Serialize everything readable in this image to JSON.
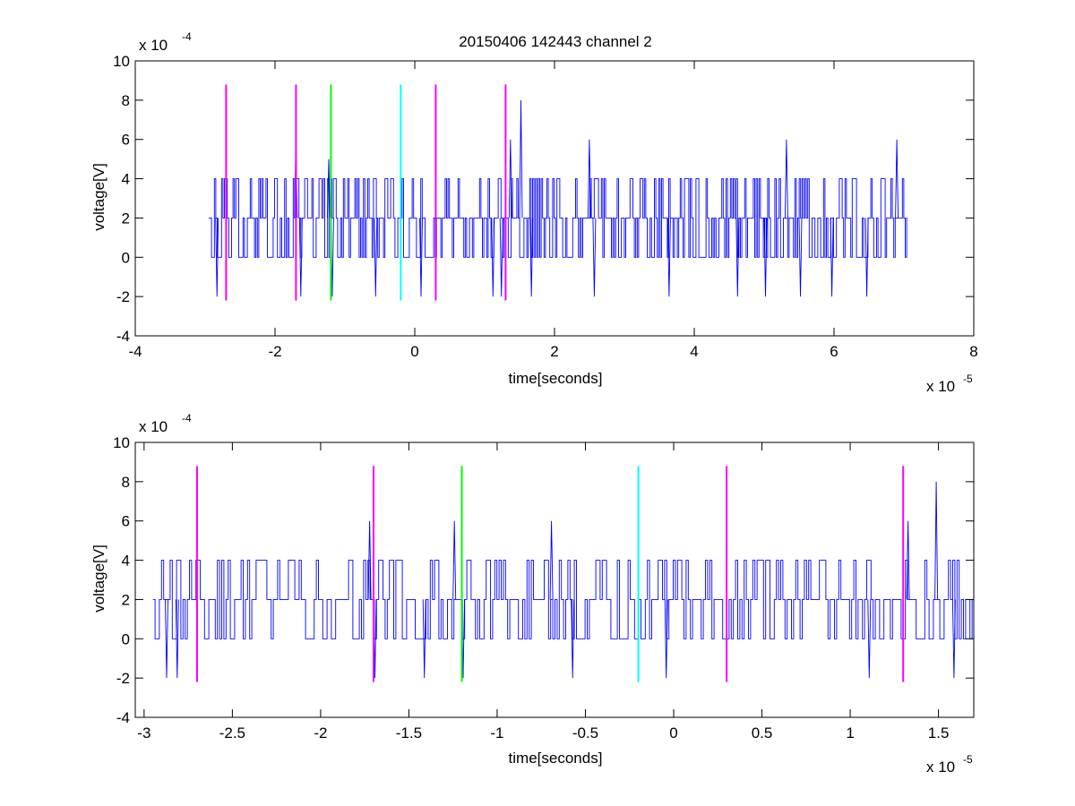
{
  "chart_data": [
    {
      "type": "line",
      "title": "20150406 142443 channel 2",
      "xlabel": "time[seconds]",
      "ylabel": "voltage[V]",
      "x_exponent_label": "x 10",
      "x_exponent": "-5",
      "y_exponent_label": "x 10",
      "y_exponent": "-4",
      "xlim": [
        -4,
        8
      ],
      "ylim": [
        -4,
        10
      ],
      "xticks": [
        -4,
        -2,
        0,
        2,
        4,
        6,
        8
      ],
      "xtick_labels": [
        "-4",
        "-2",
        "0",
        "2",
        "4",
        "6",
        "8"
      ],
      "yticks": [
        -4,
        -2,
        0,
        2,
        4,
        6,
        8,
        10
      ],
      "ytick_labels": [
        "-4",
        "-2",
        "0",
        "2",
        "4",
        "6",
        "8",
        "10"
      ],
      "grid": false,
      "series": [
        {
          "color": "#0000ff",
          "x_start": -2.95,
          "x_end": 7.05,
          "baseline": 2,
          "levels": [
            -2,
            0,
            2,
            4,
            6,
            8
          ],
          "spikes": [
            {
              "x": -2.85,
              "y": -2
            },
            {
              "x": -1.72,
              "y": 6
            },
            {
              "x": -1.65,
              "y": -2
            },
            {
              "x": -1.25,
              "y": 5
            },
            {
              "x": -1.2,
              "y": -2
            },
            {
              "x": -0.58,
              "y": -2
            },
            {
              "x": 0.07,
              "y": -2
            },
            {
              "x": 1.1,
              "y": -2
            },
            {
              "x": 1.22,
              "y": -2
            },
            {
              "x": 1.35,
              "y": 6
            },
            {
              "x": 1.5,
              "y": 8
            },
            {
              "x": 1.65,
              "y": -2
            },
            {
              "x": 2.48,
              "y": 6
            },
            {
              "x": 2.55,
              "y": -2
            },
            {
              "x": 3.62,
              "y": -2
            },
            {
              "x": 4.6,
              "y": -2
            },
            {
              "x": 5.0,
              "y": -2
            },
            {
              "x": 5.3,
              "y": 6
            },
            {
              "x": 5.5,
              "y": -2
            },
            {
              "x": 5.95,
              "y": -2
            },
            {
              "x": 6.45,
              "y": -2
            },
            {
              "x": 6.88,
              "y": 6
            }
          ]
        }
      ],
      "markers": [
        {
          "x": -2.7,
          "color": "#ff00ff",
          "y_range": [
            -2.2,
            8.8
          ]
        },
        {
          "x": -1.7,
          "color": "#ff00ff",
          "y_range": [
            -2.2,
            8.8
          ]
        },
        {
          "x": -1.2,
          "color": "#00ff00",
          "y_range": [
            -2.2,
            8.8
          ]
        },
        {
          "x": -0.2,
          "color": "#00ffff",
          "y_range": [
            -2.2,
            8.8
          ]
        },
        {
          "x": 0.3,
          "color": "#ff00ff",
          "y_range": [
            -2.2,
            8.8
          ]
        },
        {
          "x": 1.3,
          "color": "#ff00ff",
          "y_range": [
            -2.2,
            8.8
          ]
        }
      ]
    },
    {
      "type": "line",
      "title": "",
      "xlabel": "time[seconds]",
      "ylabel": "voltage[V]",
      "x_exponent_label": "x 10",
      "x_exponent": "-5",
      "y_exponent_label": "x 10",
      "y_exponent": "-4",
      "xlim": [
        -3.05,
        1.7
      ],
      "ylim": [
        -4,
        10
      ],
      "xticks": [
        -3,
        -2.5,
        -2,
        -1.5,
        -1,
        -0.5,
        0,
        0.5,
        1,
        1.5
      ],
      "xtick_labels": [
        "-3",
        "-2.5",
        "-2",
        "-1.5",
        "-1",
        "-0.5",
        "0",
        "0.5",
        "1",
        "1.5"
      ],
      "yticks": [
        -4,
        -2,
        0,
        2,
        4,
        6,
        8,
        10
      ],
      "ytick_labels": [
        "-4",
        "-2",
        "0",
        "2",
        "4",
        "6",
        "8",
        "10"
      ],
      "grid": false,
      "series": [
        {
          "color": "#0000ff",
          "x_start": -2.95,
          "x_end": 1.7,
          "baseline": 2,
          "levels": [
            -2,
            0,
            2,
            4,
            6,
            8
          ],
          "spikes": [
            {
              "x": -2.88,
              "y": -2
            },
            {
              "x": -2.82,
              "y": -2
            },
            {
              "x": -1.73,
              "y": 6
            },
            {
              "x": -1.7,
              "y": -2
            },
            {
              "x": -1.42,
              "y": -2
            },
            {
              "x": -1.25,
              "y": 6
            },
            {
              "x": -1.2,
              "y": -2
            },
            {
              "x": -0.7,
              "y": 6
            },
            {
              "x": -0.58,
              "y": -2
            },
            {
              "x": -0.05,
              "y": -2
            },
            {
              "x": 1.1,
              "y": -2
            },
            {
              "x": 1.32,
              "y": 6
            },
            {
              "x": 1.48,
              "y": 8
            },
            {
              "x": 1.58,
              "y": -2
            }
          ]
        }
      ],
      "markers": [
        {
          "x": -2.7,
          "color": "#ff00ff",
          "y_range": [
            -2.2,
            8.8
          ]
        },
        {
          "x": -1.7,
          "color": "#ff00ff",
          "y_range": [
            -2.2,
            8.8
          ]
        },
        {
          "x": -1.2,
          "color": "#00ff00",
          "y_range": [
            -2.2,
            8.8
          ]
        },
        {
          "x": -0.2,
          "color": "#00ffff",
          "y_range": [
            -2.2,
            8.8
          ]
        },
        {
          "x": 0.3,
          "color": "#ff00ff",
          "y_range": [
            -2.2,
            8.8
          ]
        },
        {
          "x": 1.3,
          "color": "#ff00ff",
          "y_range": [
            -2.2,
            8.8
          ]
        }
      ]
    }
  ]
}
